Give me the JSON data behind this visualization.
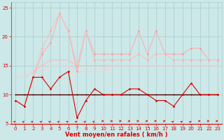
{
  "x": [
    0,
    1,
    2,
    3,
    4,
    5,
    6,
    7,
    8,
    9,
    10,
    11,
    12,
    13,
    14,
    15,
    16,
    17,
    18,
    19,
    20,
    21,
    22,
    23
  ],
  "gust1": [
    9,
    8,
    13,
    17,
    19,
    24,
    21,
    14,
    21,
    17,
    17,
    17,
    17,
    17,
    21,
    17,
    21,
    17,
    17,
    17,
    18,
    18,
    16,
    16
  ],
  "gust2": [
    9,
    8,
    13,
    18,
    21,
    24,
    21,
    15,
    21,
    16,
    16,
    16,
    16,
    16,
    17,
    16,
    17,
    17,
    16,
    16,
    16,
    16,
    16,
    16
  ],
  "avg1": [
    13,
    13,
    14,
    15,
    16,
    16,
    16,
    15,
    15,
    15,
    15,
    15,
    15,
    15,
    15,
    15,
    15,
    15,
    15,
    15,
    15,
    15,
    15,
    15
  ],
  "avg2": [
    13,
    13,
    14,
    14,
    15,
    15,
    15,
    14,
    14,
    14,
    14,
    15,
    15,
    15,
    15,
    15,
    15,
    15,
    15,
    15,
    15,
    15,
    15,
    15
  ],
  "wind1": [
    9,
    8,
    13,
    13,
    11,
    13,
    14,
    6,
    9,
    11,
    10,
    10,
    10,
    11,
    11,
    10,
    9,
    9,
    8,
    10,
    12,
    10,
    10,
    10
  ],
  "flat1": [
    10,
    10,
    10,
    10,
    10,
    10,
    10,
    10,
    10,
    10,
    10,
    10,
    10,
    10,
    10,
    10,
    10,
    10,
    10,
    10,
    10,
    10,
    10,
    10
  ],
  "flat2": [
    10,
    10,
    10,
    10,
    10,
    10,
    10,
    10,
    10,
    10,
    10,
    10,
    10,
    10,
    10,
    10,
    10,
    10,
    10,
    10,
    10,
    10,
    10,
    10
  ],
  "flat3": [
    10,
    10,
    10,
    10,
    10,
    10,
    10,
    10,
    10,
    10,
    10,
    10,
    10,
    10,
    10,
    10,
    10,
    10,
    10,
    10,
    10,
    10,
    10,
    10
  ],
  "flat4": [
    10,
    10,
    10,
    10,
    10,
    10,
    10,
    10,
    10,
    10,
    10,
    10,
    10,
    10,
    10,
    10,
    10,
    10,
    10,
    10,
    10,
    10,
    10,
    10
  ],
  "background_color": "#cce8e8",
  "grid_color": "#aacccc",
  "xlabel": "Vent moyen/en rafales ( km/h )",
  "ylim": [
    5,
    26
  ],
  "yticks": [
    5,
    10,
    15,
    20,
    25
  ],
  "xticks": [
    0,
    1,
    2,
    3,
    4,
    5,
    6,
    7,
    8,
    9,
    10,
    11,
    12,
    13,
    14,
    15,
    16,
    17,
    18,
    19,
    20,
    21,
    22,
    23
  ],
  "arrow_angles_deg": [
    45,
    45,
    45,
    45,
    45,
    45,
    45,
    45,
    45,
    45,
    0,
    0,
    0,
    0,
    0,
    0,
    0,
    0,
    45,
    45,
    45,
    0,
    0,
    0
  ]
}
